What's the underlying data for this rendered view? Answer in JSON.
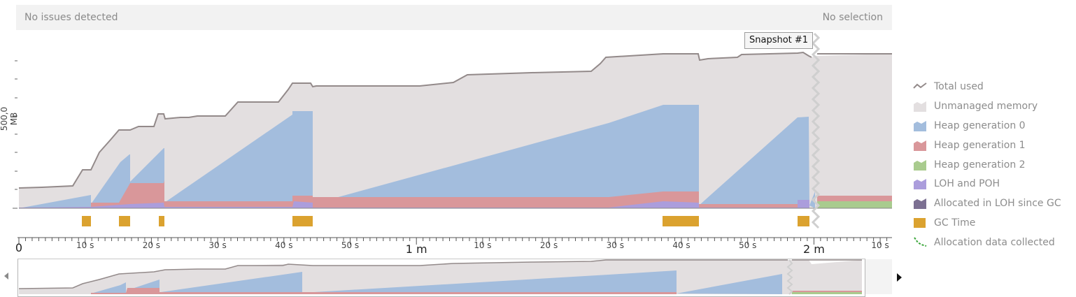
{
  "status": {
    "left": "No issues detected",
    "right": "No selection"
  },
  "snapshot": {
    "label": "Snapshot #1"
  },
  "chart_data": {
    "type": "area",
    "ylabel": "500,0 MB",
    "x_tick_labels": [
      "0",
      "10 s",
      "20 s",
      "30 s",
      "40 s",
      "50 s",
      "1 m",
      "10 s",
      "20 s",
      "30 s",
      "40 s",
      "50 s",
      "2 m",
      "10 s"
    ],
    "x_major_ticks": [
      "0",
      "1 m",
      "2 m"
    ],
    "gc_time_intervals_s": [
      [
        10,
        11.5
      ],
      [
        15,
        16.5
      ],
      [
        21.5,
        22.3
      ],
      [
        41.5,
        44.5
      ],
      [
        97,
        102.5
      ],
      [
        117,
        118.8
      ]
    ],
    "series": [
      {
        "name": "Total used",
        "color": "#938a8a"
      },
      {
        "name": "Unmanaged memory",
        "color": "#e3dfe0"
      },
      {
        "name": "Heap generation 0",
        "color": "#a3bddd"
      },
      {
        "name": "Heap generation 1",
        "color": "#d9979a"
      },
      {
        "name": "Heap generation 2",
        "color": "#a9cb8e"
      },
      {
        "name": "LOH and POH",
        "color": "#ab9ddc"
      },
      {
        "name": "Allocated in LOH since GC",
        "color": "#7c7092"
      },
      {
        "name": "GC Time",
        "color": "#dba22f"
      },
      {
        "name": "Allocation data collected",
        "color": "#3aa63a"
      }
    ]
  },
  "legend": [
    {
      "label": "Total used",
      "icon": "line-icon"
    },
    {
      "label": "Unmanaged memory",
      "icon": "area-icon"
    },
    {
      "label": "Heap generation 0",
      "icon": "area-icon"
    },
    {
      "label": "Heap generation 1",
      "icon": "area-icon"
    },
    {
      "label": "Heap generation 2",
      "icon": "area-icon"
    },
    {
      "label": "LOH and POH",
      "icon": "area-icon"
    },
    {
      "label": "Allocated in LOH since GC",
      "icon": "area-icon"
    },
    {
      "label": "GC Time",
      "icon": "bar-icon"
    },
    {
      "label": "Allocation data collected",
      "icon": "dashed-line-icon"
    }
  ]
}
